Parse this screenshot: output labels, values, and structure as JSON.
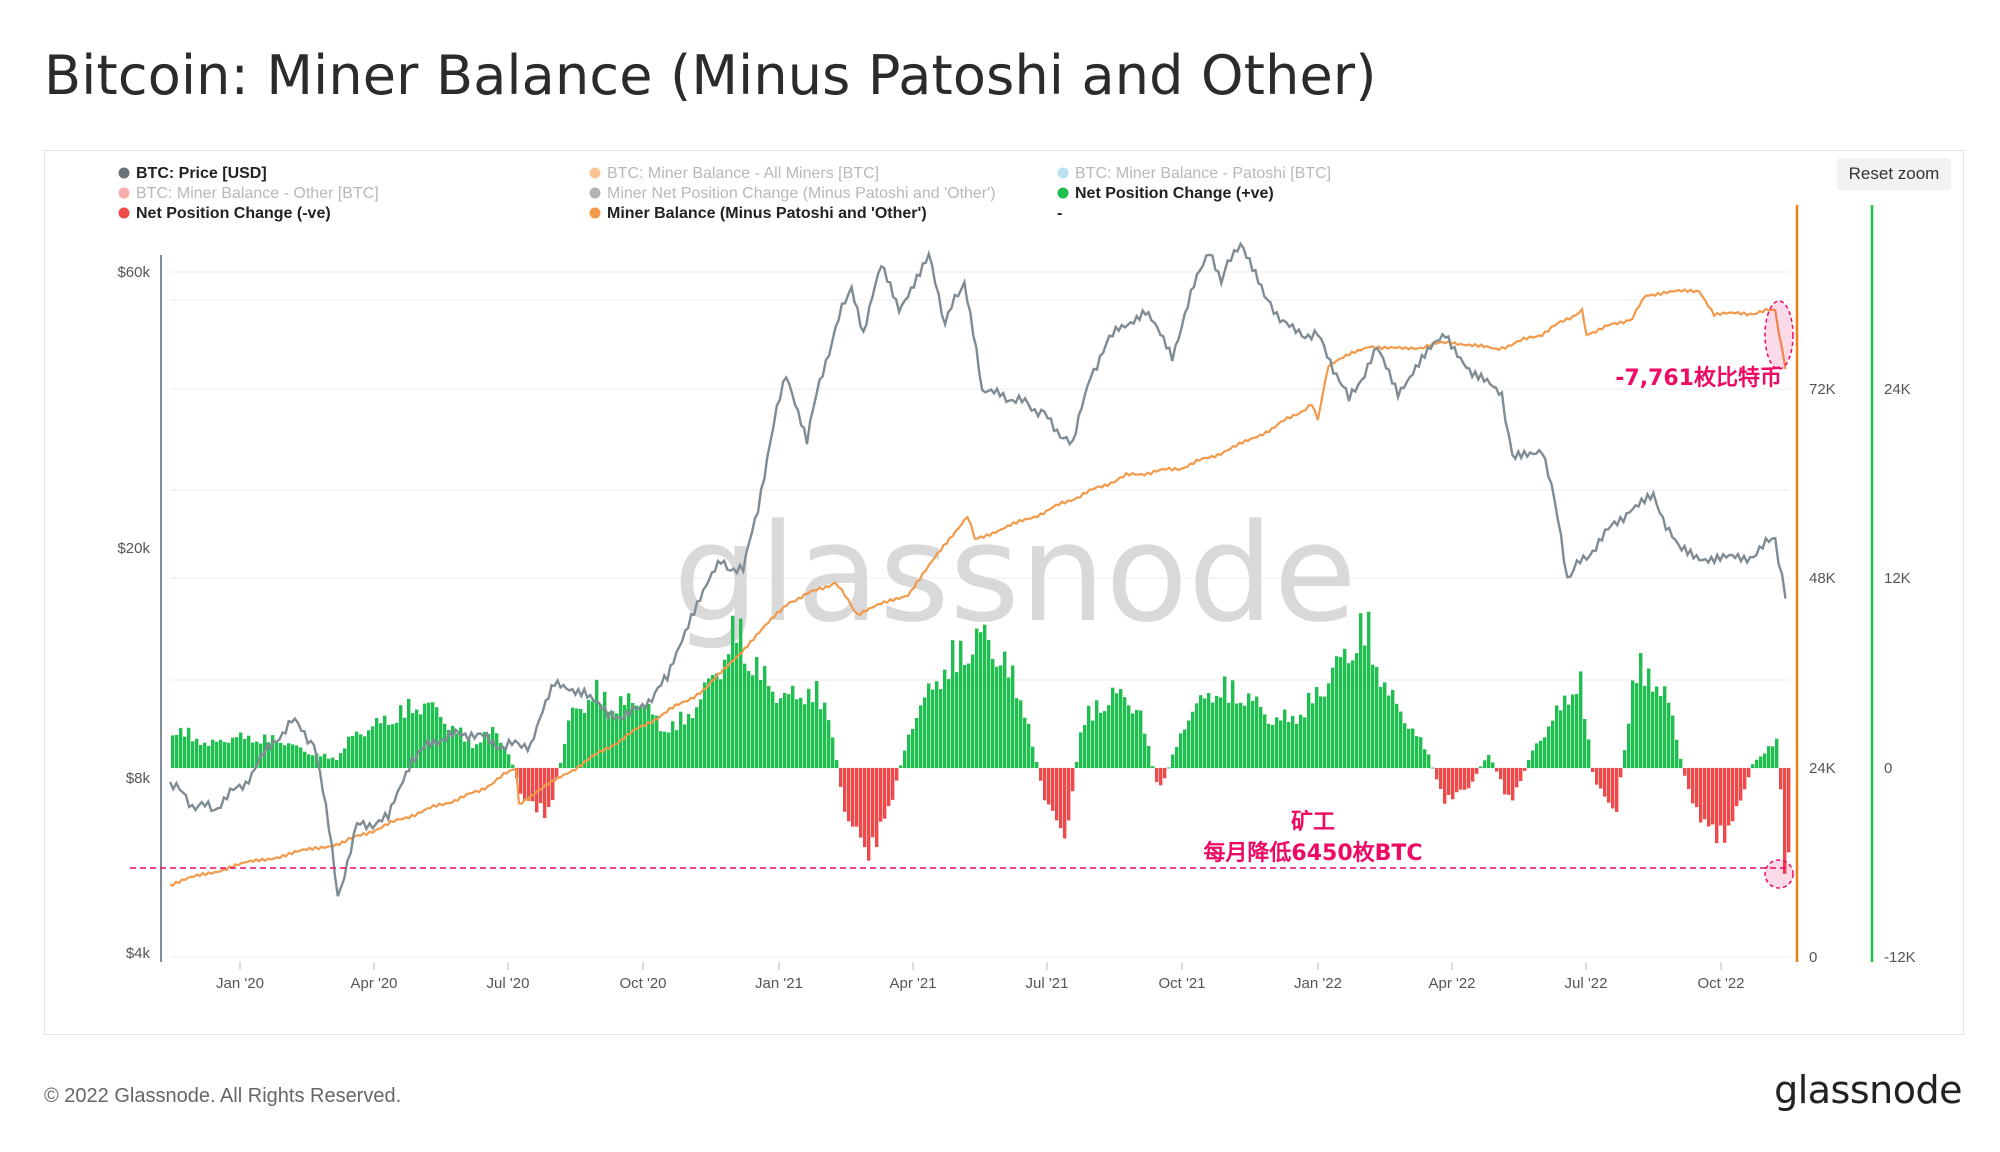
{
  "title": "Bitcoin: Miner Balance (Minus Patoshi and Other)",
  "reset_zoom_label": "Reset zoom",
  "watermark": "glassnode",
  "footer": {
    "copyright": "© 2022 Glassnode. All Rights Reserved.",
    "brand": "glassnode"
  },
  "colors": {
    "price": "#7f8c93",
    "balance": "#f39a4a",
    "positive": "#1fbf4f",
    "negative": "#f0494a",
    "annotation": "#ee0a64",
    "orange_axis": "#f57d14",
    "green_axis": "#1fbf4f"
  },
  "legend": [
    {
      "label": "BTC: Price [USD]",
      "color": "#6b7378",
      "faded": false
    },
    {
      "label": "BTC: Miner Balance - All Miners [BTC]",
      "color": "#f57d14",
      "faded": true
    },
    {
      "label": "BTC: Miner Balance - Patoshi [BTC]",
      "color": "#63c0e0",
      "faded": true
    },
    {
      "label": "BTC: Miner Balance - Other [BTC]",
      "color": "#f0494a",
      "faded": true
    },
    {
      "label": "Miner Net Position Change (Minus Patoshi and 'Other')",
      "color": "#555555",
      "faded": true
    },
    {
      "label": "Net Position Change (+ve)",
      "color": "#1fbf4f",
      "faded": false
    },
    {
      "label": "Net Position Change (-ve)",
      "color": "#f0494a",
      "faded": false
    },
    {
      "label": "Miner Balance (Minus Patoshi and 'Other')",
      "color": "#f39a4a",
      "faded": false
    },
    {
      "label": "-",
      "color": null,
      "faded": false
    }
  ],
  "annotations": {
    "top_label": "-7,761枚比特币",
    "bottom_line1": "矿工",
    "bottom_line2": "每月降低6450枚BTC"
  },
  "chart_data": {
    "type": "line",
    "x_ticks": [
      "Jan '20",
      "Apr '20",
      "Jul '20",
      "Oct '20",
      "Jan '21",
      "Apr '21",
      "Jul '21",
      "Oct '21",
      "Jan '22",
      "Apr '22",
      "Jul '22",
      "Oct '22"
    ],
    "y_left_ticks": [
      "$60k",
      "$20k",
      "$8k",
      "$4k"
    ],
    "y_left_scale": "log",
    "y_mid_ticks": [
      "72K",
      "48K",
      "24K",
      "0"
    ],
    "y_right_ticks": [
      "24K",
      "12K",
      "0",
      "-12K"
    ],
    "series": [
      {
        "name": "BTC: Price [USD]",
        "axis": "left",
        "points": [
          [
            "2019-11-20",
            8000
          ],
          [
            "2019-12-05",
            7300
          ],
          [
            "2019-12-20",
            7200
          ],
          [
            "2020-01-10",
            8000
          ],
          [
            "2020-02-10",
            10200
          ],
          [
            "2020-02-25",
            9300
          ],
          [
            "2020-03-12",
            5000
          ],
          [
            "2020-03-25",
            6700
          ],
          [
            "2020-04-15",
            6900
          ],
          [
            "2020-05-01",
            8800
          ],
          [
            "2020-05-20",
            9500
          ],
          [
            "2020-06-10",
            9700
          ],
          [
            "2020-07-01",
            9200
          ],
          [
            "2020-07-20",
            9300
          ],
          [
            "2020-08-05",
            11700
          ],
          [
            "2020-08-25",
            11500
          ],
          [
            "2020-09-10",
            10300
          ],
          [
            "2020-10-01",
            10600
          ],
          [
            "2020-10-20",
            12000
          ],
          [
            "2020-11-05",
            15500
          ],
          [
            "2020-11-25",
            19000
          ],
          [
            "2020-12-10",
            18300
          ],
          [
            "2020-12-20",
            23500
          ],
          [
            "2021-01-08",
            40000
          ],
          [
            "2021-01-22",
            31000
          ],
          [
            "2021-02-08",
            46000
          ],
          [
            "2021-02-21",
            57000
          ],
          [
            "2021-03-01",
            47000
          ],
          [
            "2021-03-13",
            61000
          ],
          [
            "2021-03-25",
            52000
          ],
          [
            "2021-04-14",
            63500
          ],
          [
            "2021-04-25",
            49000
          ],
          [
            "2021-05-08",
            58000
          ],
          [
            "2021-05-20",
            37000
          ],
          [
            "2021-06-01",
            37000
          ],
          [
            "2021-06-20",
            35500
          ],
          [
            "2021-07-01",
            34000
          ],
          [
            "2021-07-20",
            30000
          ],
          [
            "2021-08-01",
            40000
          ],
          [
            "2021-08-20",
            48500
          ],
          [
            "2021-09-07",
            51000
          ],
          [
            "2021-09-25",
            43000
          ],
          [
            "2021-10-20",
            66000
          ],
          [
            "2021-10-28",
            58000
          ],
          [
            "2021-11-10",
            68000
          ],
          [
            "2021-11-26",
            54000
          ],
          [
            "2021-12-15",
            47500
          ],
          [
            "2022-01-01",
            46500
          ],
          [
            "2022-01-22",
            36000
          ],
          [
            "2022-02-10",
            44000
          ],
          [
            "2022-02-24",
            37500
          ],
          [
            "2022-03-28",
            47000
          ],
          [
            "2022-04-15",
            40000
          ],
          [
            "2022-05-05",
            37000
          ],
          [
            "2022-05-12",
            28500
          ],
          [
            "2022-06-01",
            30000
          ],
          [
            "2022-06-18",
            18000
          ],
          [
            "2022-07-01",
            19500
          ],
          [
            "2022-07-30",
            23500
          ],
          [
            "2022-08-15",
            24500
          ],
          [
            "2022-09-01",
            20000
          ],
          [
            "2022-09-15",
            19500
          ],
          [
            "2022-10-15",
            19200
          ],
          [
            "2022-11-05",
            20900
          ],
          [
            "2022-11-12",
            16500
          ]
        ]
      },
      {
        "name": "Miner Balance (Minus Patoshi and 'Other')",
        "axis": "mid",
        "points": [
          [
            "2019-11-20",
            9200
          ],
          [
            "2020-01-01",
            11500
          ],
          [
            "2020-03-15",
            14500
          ],
          [
            "2020-05-01",
            18000
          ],
          [
            "2020-06-15",
            21000
          ],
          [
            "2020-07-10",
            24000
          ],
          [
            "2020-07-12",
            19500
          ],
          [
            "2020-08-15",
            23500
          ],
          [
            "2020-10-01",
            29000
          ],
          [
            "2020-11-15",
            34000
          ],
          [
            "2020-12-15",
            40000
          ],
          [
            "2021-01-10",
            45000
          ],
          [
            "2021-02-10",
            47500
          ],
          [
            "2021-02-25",
            43500
          ],
          [
            "2021-03-31",
            46000
          ],
          [
            "2021-04-20",
            51000
          ],
          [
            "2021-05-10",
            56000
          ],
          [
            "2021-05-15",
            53000
          ],
          [
            "2021-06-20",
            55500
          ],
          [
            "2021-07-25",
            58500
          ],
          [
            "2021-08-25",
            61000
          ],
          [
            "2021-10-01",
            62000
          ],
          [
            "2021-11-05",
            64500
          ],
          [
            "2021-12-01",
            67000
          ],
          [
            "2021-12-28",
            70000
          ],
          [
            "2022-01-01",
            68000
          ],
          [
            "2022-01-08",
            75000
          ],
          [
            "2022-02-05",
            77500
          ],
          [
            "2022-03-01",
            77000
          ],
          [
            "2022-04-01",
            78000
          ],
          [
            "2022-05-01",
            77000
          ],
          [
            "2022-06-01",
            79000
          ],
          [
            "2022-06-28",
            82000
          ],
          [
            "2022-07-01",
            79000
          ],
          [
            "2022-08-01",
            81000
          ],
          [
            "2022-08-10",
            84000
          ],
          [
            "2022-09-15",
            84500
          ],
          [
            "2022-09-25",
            81500
          ],
          [
            "2022-10-15",
            81500
          ],
          [
            "2022-11-05",
            82000
          ],
          [
            "2022-11-12",
            74500
          ]
        ]
      },
      {
        "name": "Net Position Change",
        "axis": "right",
        "points": [
          [
            "2019-11-20",
            2500
          ],
          [
            "2019-12-01",
            2200
          ],
          [
            "2019-12-15",
            1500
          ],
          [
            "2020-01-01",
            2000
          ],
          [
            "2020-02-01",
            1800
          ],
          [
            "2020-02-20",
            1000
          ],
          [
            "2020-03-10",
            600
          ],
          [
            "2020-03-20",
            2000
          ],
          [
            "2020-04-10",
            3000
          ],
          [
            "2020-04-25",
            3700
          ],
          [
            "2020-05-10",
            4200
          ],
          [
            "2020-05-25",
            2800
          ],
          [
            "2020-06-10",
            1500
          ],
          [
            "2020-06-25",
            2500
          ],
          [
            "2020-07-05",
            700
          ],
          [
            "2020-07-15",
            -2400
          ],
          [
            "2020-08-01",
            -2800
          ],
          [
            "2020-08-15",
            3500
          ],
          [
            "2020-09-01",
            4800
          ],
          [
            "2020-09-15",
            4000
          ],
          [
            "2020-10-01",
            4500
          ],
          [
            "2020-10-15",
            2500
          ],
          [
            "2020-11-01",
            3200
          ],
          [
            "2020-11-20",
            6000
          ],
          [
            "2020-12-05",
            9000
          ],
          [
            "2020-12-20",
            6000
          ],
          [
            "2021-01-05",
            4500
          ],
          [
            "2021-01-25",
            5000
          ],
          [
            "2021-02-05",
            3500
          ],
          [
            "2021-02-15",
            -2600
          ],
          [
            "2021-03-01",
            -5500
          ],
          [
            "2021-03-15",
            -3600
          ],
          [
            "2021-04-01",
            2800
          ],
          [
            "2021-04-20",
            6000
          ],
          [
            "2021-05-05",
            7500
          ],
          [
            "2021-05-20",
            8500
          ],
          [
            "2021-06-01",
            7000
          ],
          [
            "2021-06-15",
            4500
          ],
          [
            "2021-07-01",
            -2500
          ],
          [
            "2021-07-15",
            -4200
          ],
          [
            "2021-07-25",
            3000
          ],
          [
            "2021-08-15",
            4800
          ],
          [
            "2021-09-01",
            4000
          ],
          [
            "2021-09-15",
            -1600
          ],
          [
            "2021-10-05",
            3500
          ],
          [
            "2021-10-25",
            5200
          ],
          [
            "2021-11-15",
            4500
          ],
          [
            "2021-12-01",
            3000
          ],
          [
            "2021-12-20",
            3500
          ],
          [
            "2022-01-05",
            5500
          ],
          [
            "2022-01-20",
            7500
          ],
          [
            "2022-02-01",
            9200
          ],
          [
            "2022-02-15",
            5000
          ],
          [
            "2022-03-01",
            3000
          ],
          [
            "2022-03-15",
            1000
          ],
          [
            "2022-03-25",
            -2000
          ],
          [
            "2022-04-10",
            -1500
          ],
          [
            "2022-04-25",
            1000
          ],
          [
            "2022-05-10",
            -2400
          ],
          [
            "2022-05-25",
            1200
          ],
          [
            "2022-06-10",
            3500
          ],
          [
            "2022-06-25",
            6000
          ],
          [
            "2022-07-05",
            -1000
          ],
          [
            "2022-07-20",
            -2700
          ],
          [
            "2022-08-01",
            6000
          ],
          [
            "2022-08-10",
            6400
          ],
          [
            "2022-08-25",
            4000
          ],
          [
            "2022-09-05",
            -1000
          ],
          [
            "2022-09-20",
            -4400
          ],
          [
            "2022-10-05",
            -4000
          ],
          [
            "2022-10-20",
            300
          ],
          [
            "2022-11-01",
            1500
          ],
          [
            "2022-11-06",
            1600
          ],
          [
            "2022-11-10",
            -6450
          ]
        ]
      }
    ]
  }
}
